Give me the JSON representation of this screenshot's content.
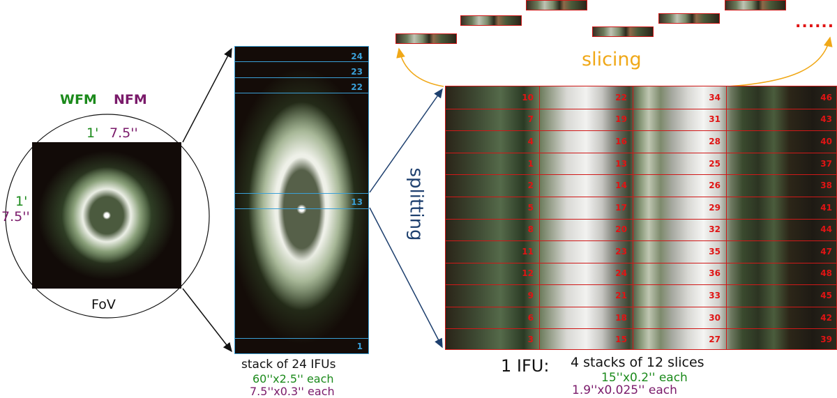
{
  "fov": {
    "wfm_label": "WFM",
    "nfm_label": "NFM",
    "top_wfm": "1'",
    "top_nfm": "7.5''",
    "left_wfm": "1'",
    "left_nfm": "7.5''",
    "caption": "FoV"
  },
  "stack": {
    "ifu_numbers": [
      "24",
      "23",
      "22",
      "13",
      "1"
    ],
    "caption": "stack of 24 IFUs",
    "wfm_each": "60''x2.5'' each",
    "nfm_each": "7.5''x0.3'' each"
  },
  "splitting_label": "splitting",
  "slicing_label": "slicing",
  "ellipsis": "......",
  "slices": {
    "rows": [
      [
        "10",
        "22",
        "34",
        "46"
      ],
      [
        "7",
        "19",
        "31",
        "43"
      ],
      [
        "4",
        "16",
        "28",
        "40"
      ],
      [
        "1",
        "13",
        "25",
        "37"
      ],
      [
        "2",
        "14",
        "26",
        "38"
      ],
      [
        "5",
        "17",
        "29",
        "41"
      ],
      [
        "8",
        "20",
        "32",
        "44"
      ],
      [
        "11",
        "23",
        "35",
        "47"
      ],
      [
        "12",
        "24",
        "36",
        "48"
      ],
      [
        "9",
        "21",
        "33",
        "45"
      ],
      [
        "6",
        "18",
        "30",
        "42"
      ],
      [
        "3",
        "15",
        "27",
        "39"
      ]
    ],
    "ifu_label": "1 IFU:",
    "caption": "4 stacks of 12 slices",
    "wfm_each": "15''x0.2'' each",
    "nfm_each": "1.9''x0.025'' each"
  },
  "colors": {
    "wfm": "#1b8a1b",
    "nfm": "#7a1a6a",
    "ifu_lines": "#3aa0d8",
    "slice_lines": "#d01818",
    "slicing_arrow": "#f0a818",
    "splitting_arrow": "#1d3f6e"
  }
}
